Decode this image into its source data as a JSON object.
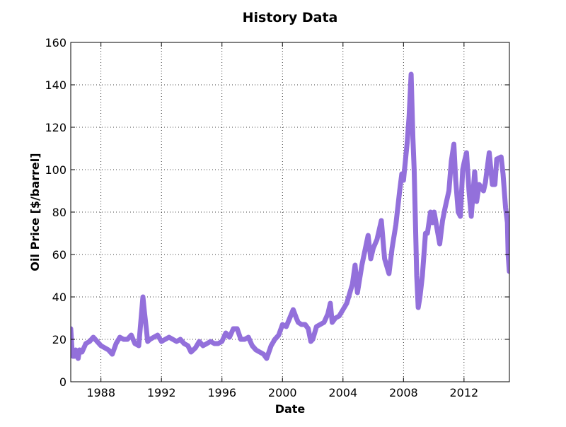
{
  "chart_data": {
    "type": "line",
    "title": "History Data",
    "xlabel": "Date",
    "ylabel": "Oil Price [$/barrel]",
    "xlim": [
      "1986-01-02",
      "2015-01-01"
    ],
    "ylim": [
      0,
      160
    ],
    "x_ticks": [
      "1988",
      "1992",
      "1996",
      "2000",
      "2004",
      "2008",
      "2012"
    ],
    "y_ticks": [
      "0",
      "20",
      "40",
      "60",
      "80",
      "100",
      "120",
      "140",
      "160"
    ],
    "grid": true,
    "legend": "none",
    "line_color": "#9370DB",
    "series": [
      {
        "x": [
          "1986-01-02",
          "1986-02-01",
          "1986-03-01",
          "1986-04-01",
          "1986-05-01",
          "1986-06-01",
          "1986-07-01",
          "1986-08-01",
          "1986-09-01",
          "1986-10-01",
          "1987-01-01",
          "1987-04-01",
          "1987-07-01",
          "1987-10-01",
          "1988-01-01",
          "1988-04-01",
          "1988-07-01",
          "1988-10-01",
          "1989-01-01",
          "1989-04-01",
          "1989-07-01",
          "1989-10-01",
          "1990-01-01",
          "1990-04-01",
          "1990-07-01",
          "1990-08-15",
          "1990-10-10",
          "1990-11-15",
          "1991-01-01",
          "1991-02-01",
          "1991-04-01",
          "1991-07-01",
          "1991-10-01",
          "1992-01-01",
          "1992-04-01",
          "1992-07-01",
          "1992-10-01",
          "1993-01-01",
          "1993-04-01",
          "1993-07-01",
          "1993-10-01",
          "1993-12-15",
          "1994-04-01",
          "1994-07-01",
          "1994-10-01",
          "1995-01-01",
          "1995-04-01",
          "1995-07-01",
          "1995-10-01",
          "1996-01-01",
          "1996-04-01",
          "1996-07-01",
          "1996-10-01",
          "1997-01-01",
          "1997-04-01",
          "1997-07-01",
          "1997-10-01",
          "1998-01-01",
          "1998-04-01",
          "1998-07-01",
          "1998-10-01",
          "1998-12-15",
          "1999-04-01",
          "1999-07-01",
          "1999-10-01",
          "2000-01-01",
          "2000-04-01",
          "2000-09-15",
          "2000-12-01",
          "2001-01-15",
          "2001-04-01",
          "2001-07-01",
          "2001-09-15",
          "2001-11-15",
          "2002-01-01",
          "2002-04-01",
          "2002-07-01",
          "2002-10-01",
          "2003-01-01",
          "2003-03-01",
          "2003-04-15",
          "2003-07-01",
          "2003-10-01",
          "2004-01-01",
          "2004-04-01",
          "2004-08-15",
          "2004-10-20",
          "2004-12-15",
          "2005-04-01",
          "2005-08-30",
          "2005-11-01",
          "2006-01-01",
          "2006-04-01",
          "2006-07-15",
          "2006-10-01",
          "2007-01-15",
          "2007-04-01",
          "2007-07-01",
          "2007-10-01",
          "2007-11-20",
          "2008-01-01",
          "2008-04-01",
          "2008-05-15",
          "2008-07-03",
          "2008-08-15",
          "2008-09-15",
          "2008-10-15",
          "2008-11-15",
          "2008-12-21",
          "2009-02-01",
          "2009-04-01",
          "2009-06-15",
          "2009-08-01",
          "2009-10-15",
          "2009-12-01",
          "2010-01-10",
          "2010-05-25",
          "2010-08-01",
          "2010-10-01",
          "2011-01-01",
          "2011-03-01",
          "2011-05-01",
          "2011-06-15",
          "2011-08-15",
          "2011-10-05",
          "2011-12-01",
          "2012-01-01",
          "2012-03-01",
          "2012-05-01",
          "2012-06-25",
          "2012-09-15",
          "2012-11-01",
          "2013-01-01",
          "2013-04-15",
          "2013-06-01",
          "2013-09-01",
          "2013-11-15",
          "2014-01-15",
          "2014-03-01",
          "2014-06-15",
          "2014-08-01",
          "2014-10-01",
          "2014-11-15",
          "2014-12-01",
          "2014-12-31"
        ],
        "values": [
          25,
          15,
          12,
          12,
          15,
          12,
          11,
          15,
          14,
          14,
          18,
          19,
          21,
          19,
          17,
          16,
          15,
          13,
          18,
          21,
          20,
          20,
          22,
          18,
          17,
          27,
          40,
          33,
          25,
          19,
          20,
          21,
          22,
          19,
          20,
          21,
          20,
          19,
          20,
          18,
          17,
          14,
          16,
          19,
          17,
          18,
          19,
          18,
          18,
          19,
          23,
          21,
          25,
          25,
          20,
          20,
          21,
          17,
          15,
          14,
          13,
          11,
          17,
          20,
          22,
          27,
          26,
          34,
          30,
          28,
          27,
          27,
          25,
          19,
          20,
          26,
          27,
          28,
          32,
          37,
          28,
          30,
          31,
          34,
          37,
          46,
          55,
          42,
          55,
          69,
          58,
          63,
          67,
          76,
          58,
          51,
          63,
          74,
          90,
          98,
          95,
          113,
          125,
          145,
          115,
          100,
          75,
          50,
          35,
          40,
          50,
          70,
          70,
          80,
          75,
          80,
          65,
          76,
          82,
          90,
          104,
          112,
          95,
          80,
          78,
          100,
          103,
          108,
          90,
          78,
          99,
          85,
          93,
          90,
          94,
          108,
          93,
          93,
          105,
          106,
          98,
          82,
          75,
          60,
          52
        ]
      }
    ]
  }
}
